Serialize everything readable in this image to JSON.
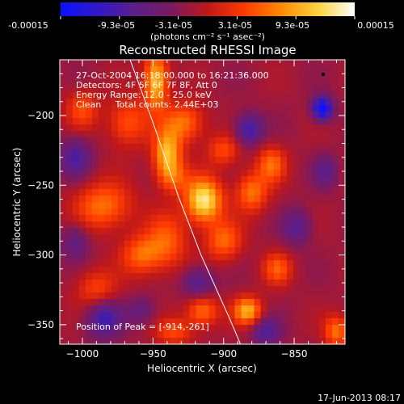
{
  "colorbar": {
    "ticks": [
      "-0.00015",
      "-9.3e-05",
      "-3.1e-05",
      "3.1e-05",
      "9.3e-05",
      "0.00015"
    ],
    "unit_label": "(photons cm⁻² s⁻¹ asec⁻²)",
    "colors": [
      "#0a12ff",
      "#3018c8",
      "#5a1f8a",
      "#7a1a60",
      "#c01818",
      "#ff3a00",
      "#ff8a00",
      "#ffd23c",
      "#ffffff"
    ]
  },
  "chart_data": {
    "type": "heatmap",
    "title": "Reconstructed RHESSI Image",
    "xlabel": "Heliocentric X (arcsec)",
    "ylabel": "Heliocentric Y (arcsec)",
    "xlim": [
      -1016,
      -814
    ],
    "ylim": [
      -364,
      -160
    ],
    "x_ticks": [
      -1000,
      -950,
      -900,
      -850
    ],
    "x_tick_labels": [
      "−1000",
      "−950",
      "−900",
      "−850"
    ],
    "y_ticks": [
      -200,
      -250,
      -300,
      -350
    ],
    "y_tick_labels": [
      "−200",
      "−250",
      "−300",
      "−350"
    ],
    "value_range": [
      -0.00015,
      0.00015
    ],
    "peak_position": [
      -914,
      -261
    ],
    "annotations": [
      "27-Oct-2004 16:18:00.000 to 16:21:36.000",
      "Detectors: 4F 5F 6F 7F 8F, Att 0",
      "Energy Range: 12.0 - 25.0 keV",
      "Clean     Total counts: 2.44E+03"
    ],
    "peak_label": "Position of Peak = [-914,-261]",
    "limb_curve": [
      [
        -968,
        -155
      ],
      [
        -950,
        -205
      ],
      [
        -932,
        -258
      ],
      [
        -916,
        -300
      ],
      [
        -896,
        -345
      ],
      [
        -888,
        -364
      ]
    ],
    "blobs": [
      {
        "x": -914,
        "y": -261,
        "v": 1.0,
        "sx": 9,
        "sy": 11
      },
      {
        "x": -940,
        "y": -228,
        "v": 0.8,
        "sx": 7,
        "sy": 12
      },
      {
        "x": -948,
        "y": -175,
        "v": 0.85,
        "sx": 6,
        "sy": 14
      },
      {
        "x": -928,
        "y": -205,
        "v": 0.55,
        "sx": 10,
        "sy": 10
      },
      {
        "x": -968,
        "y": -205,
        "v": 0.45,
        "sx": 10,
        "sy": 12
      },
      {
        "x": -985,
        "y": -265,
        "v": 0.55,
        "sx": 14,
        "sy": 12
      },
      {
        "x": -958,
        "y": -300,
        "v": 0.5,
        "sx": 10,
        "sy": 10
      },
      {
        "x": -940,
        "y": -290,
        "v": 0.45,
        "sx": 10,
        "sy": 14
      },
      {
        "x": -900,
        "y": -290,
        "v": 0.5,
        "sx": 9,
        "sy": 10
      },
      {
        "x": -880,
        "y": -255,
        "v": 0.55,
        "sx": 8,
        "sy": 10
      },
      {
        "x": -866,
        "y": -235,
        "v": 0.5,
        "sx": 7,
        "sy": 9
      },
      {
        "x": -900,
        "y": -225,
        "v": 0.4,
        "sx": 8,
        "sy": 8
      },
      {
        "x": -883,
        "y": -340,
        "v": 0.75,
        "sx": 7,
        "sy": 7
      },
      {
        "x": -915,
        "y": -340,
        "v": 0.55,
        "sx": 8,
        "sy": 8
      },
      {
        "x": -990,
        "y": -325,
        "v": 0.4,
        "sx": 10,
        "sy": 10
      },
      {
        "x": -1000,
        "y": -195,
        "v": 0.4,
        "sx": 8,
        "sy": 10
      },
      {
        "x": -820,
        "y": -355,
        "v": 0.55,
        "sx": 6,
        "sy": 8
      },
      {
        "x": -862,
        "y": -310,
        "v": 0.45,
        "sx": 7,
        "sy": 8
      },
      {
        "x": -935,
        "y": -355,
        "v": 0.4,
        "sx": 9,
        "sy": 7
      },
      {
        "x": -830,
        "y": -195,
        "v": -0.95,
        "sx": 5,
        "sy": 6
      },
      {
        "x": -882,
        "y": -210,
        "v": -0.55,
        "sx": 7,
        "sy": 8
      },
      {
        "x": -1005,
        "y": -230,
        "v": -0.45,
        "sx": 8,
        "sy": 10
      },
      {
        "x": -985,
        "y": -345,
        "v": -0.55,
        "sx": 9,
        "sy": 10
      },
      {
        "x": -918,
        "y": -320,
        "v": -0.45,
        "sx": 8,
        "sy": 8
      },
      {
        "x": -870,
        "y": -355,
        "v": -0.45,
        "sx": 7,
        "sy": 7
      },
      {
        "x": -958,
        "y": -340,
        "v": -0.3,
        "sx": 7,
        "sy": 7
      },
      {
        "x": -848,
        "y": -280,
        "v": -0.4,
        "sx": 7,
        "sy": 9
      },
      {
        "x": -828,
        "y": -240,
        "v": -0.35,
        "sx": 6,
        "sy": 8
      },
      {
        "x": -1005,
        "y": -290,
        "v": -0.35,
        "sx": 7,
        "sy": 9
      },
      {
        "x": -935,
        "y": -245,
        "v": 0.35,
        "sx": 8,
        "sy": 8
      }
    ]
  },
  "footer": {
    "date": "17-Jun-2013 08:17"
  }
}
